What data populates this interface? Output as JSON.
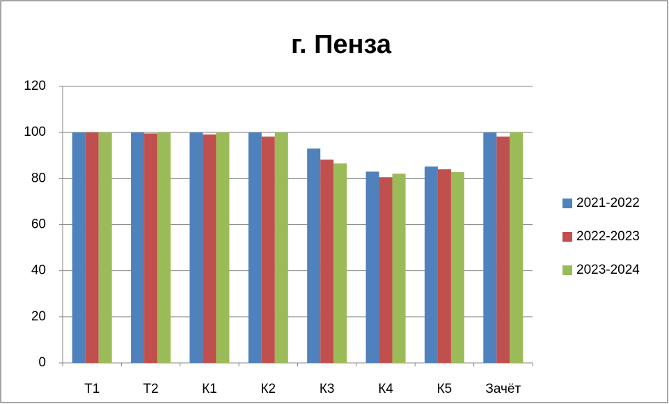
{
  "chart_data": {
    "type": "bar",
    "title": "г. Пенза",
    "categories": [
      "Т1",
      "Т2",
      "К1",
      "К2",
      "К3",
      "К4",
      "К5",
      "Зачёт"
    ],
    "series": [
      {
        "name": "2021-2022",
        "color": "#4f81bd",
        "values": [
          100,
          100,
          100,
          100,
          93,
          83,
          85.2,
          100
        ]
      },
      {
        "name": "2022-2023",
        "color": "#c0504d",
        "values": [
          100,
          99.6,
          99.1,
          98.2,
          88.2,
          80.6,
          84,
          98.2
        ]
      },
      {
        "name": "2023-2024",
        "color": "#9bbb59",
        "values": [
          100,
          100,
          100,
          100,
          86.6,
          82.1,
          82.8,
          100
        ]
      }
    ],
    "ylim": [
      0,
      120
    ],
    "yticks": [
      0,
      20,
      40,
      60,
      80,
      100,
      120
    ],
    "grid": true,
    "legend": "right"
  }
}
